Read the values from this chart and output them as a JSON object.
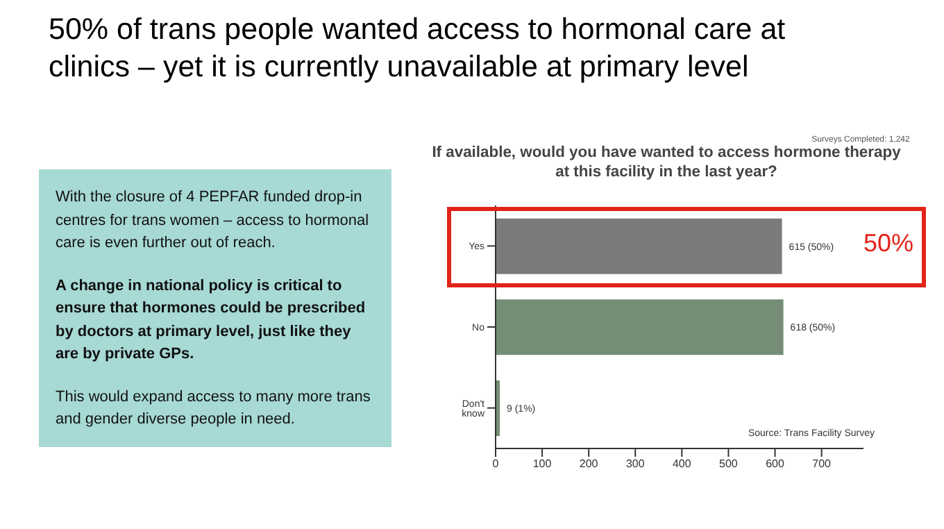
{
  "chart_data": [
    {
      "type": "other",
      "title": "50% of trans people wanted access to hormonal care at clinics – yet it is currently unavailable at primary level",
      "annotations": [
        "With the closure of 4 PEPFAR funded drop-in centres for trans women – access to hormonal care is even further out of reach.",
        "A change in national policy is critical to ensure that hormones could be prescribed by doctors at primary level, just like they are by private GPs.",
        "This would expand access to many more trans and gender diverse people in need."
      ]
    },
    {
      "type": "bar",
      "orientation": "horizontal",
      "title": "If available, would you have wanted to access hormone therapy at this facility in the last year?",
      "categories": [
        "Yes",
        "No",
        "Don't know"
      ],
      "values": [
        615,
        618,
        9
      ],
      "colors": [
        "#7b7b7b",
        "#758c75",
        "#758c75"
      ],
      "value_labels": [
        "615 (50%)",
        "618 (50%)",
        "9 (1%)"
      ],
      "xlim": [
        0,
        790
      ],
      "xticks": [
        0,
        100,
        200,
        300,
        400,
        500,
        600,
        700
      ],
      "annotations": [
        "Surveys Completed: 1,242",
        "Source: Trans Facility Survey",
        "50%"
      ]
    }
  ]
}
